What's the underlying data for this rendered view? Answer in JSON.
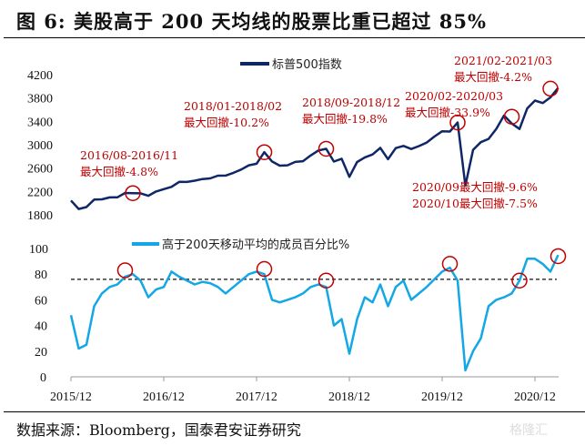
{
  "title": "图 6:  美股高于 200 天均线的股票比重已超过 85%",
  "source": "数据来源：Bloomberg，国泰君安证券研究",
  "watermark": "格隆汇",
  "chart_data": [
    {
      "type": "line",
      "name": "top",
      "legend": "标普500指数",
      "color": "#0f2766",
      "yticks": [
        1800,
        2200,
        2600,
        3000,
        3400,
        3800,
        4200
      ],
      "ylim": [
        1800,
        4200
      ],
      "x": [
        "2015-12",
        "2016-01",
        "2016-02",
        "2016-03",
        "2016-04",
        "2016-05",
        "2016-06",
        "2016-07",
        "2016-08",
        "2016-09",
        "2016-10",
        "2016-11",
        "2016-12",
        "2017-01",
        "2017-02",
        "2017-03",
        "2017-04",
        "2017-05",
        "2017-06",
        "2017-07",
        "2017-08",
        "2017-09",
        "2017-10",
        "2017-11",
        "2017-12",
        "2018-01",
        "2018-02",
        "2018-03",
        "2018-04",
        "2018-05",
        "2018-06",
        "2018-07",
        "2018-08",
        "2018-09",
        "2018-10",
        "2018-11",
        "2018-12",
        "2019-01",
        "2019-02",
        "2019-03",
        "2019-04",
        "2019-05",
        "2019-06",
        "2019-07",
        "2019-08",
        "2019-09",
        "2019-10",
        "2019-11",
        "2019-12",
        "2020-01",
        "2020-02",
        "2020-03",
        "2020-04",
        "2020-05",
        "2020-06",
        "2020-07",
        "2020-08",
        "2020-09",
        "2020-10",
        "2020-11",
        "2020-12",
        "2021-01",
        "2021-02",
        "2021-03"
      ],
      "values": [
        2044,
        1900,
        1932,
        2060,
        2065,
        2097,
        2099,
        2174,
        2171,
        2168,
        2126,
        2199,
        2239,
        2279,
        2364,
        2363,
        2384,
        2412,
        2423,
        2470,
        2472,
        2519,
        2575,
        2648,
        2674,
        2872,
        2714,
        2641,
        2648,
        2705,
        2718,
        2816,
        2902,
        2930,
        2712,
        2760,
        2450,
        2704,
        2784,
        2834,
        2946,
        2752,
        2942,
        2980,
        2926,
        2977,
        3038,
        3141,
        3231,
        3226,
        3380,
        2300,
        2912,
        3044,
        3100,
        3271,
        3500,
        3363,
        3270,
        3622,
        3756,
        3714,
        3811,
        3973
      ],
      "annotations": [
        {
          "date": "2016-08",
          "value": 2171,
          "text": [
            "2016/08-2016/11",
            "最大回撤-4.8%"
          ]
        },
        {
          "date": "2018-01",
          "value": 2872,
          "text": [
            "2018/01-2018/02",
            "最大回撤-10.2%"
          ]
        },
        {
          "date": "2018-09",
          "value": 2930,
          "text": [
            "2018/09-2018/12",
            "最大回撤-19.8%"
          ]
        },
        {
          "date": "2020-02",
          "value": 3380,
          "text": [
            "2020/02-2020/03",
            "最大回撤-33.9%"
          ]
        },
        {
          "date": "2020-09",
          "value": 3480,
          "text": [
            "2020/09最大回撤-9.6%",
            "2020/10最大回撤-7.5%"
          ]
        },
        {
          "date": "2021-02",
          "value": 3960,
          "text": [
            "2021/02-2021/03",
            "最大回撤-4.2%"
          ]
        }
      ]
    },
    {
      "type": "line",
      "name": "bottom",
      "legend": "高于200天移动平均的成员百分比%",
      "color": "#13a7e6",
      "yticks": [
        0,
        20,
        40,
        60,
        80,
        100
      ],
      "ylim": [
        0,
        100
      ],
      "reference_line": 76,
      "xticks": [
        "2015/12",
        "2016/12",
        "2017/12",
        "2018/12",
        "2019/12",
        "2020/12"
      ],
      "values": [
        48,
        22,
        25,
        55,
        65,
        70,
        72,
        78,
        80,
        75,
        62,
        68,
        70,
        82,
        78,
        75,
        72,
        74,
        73,
        70,
        65,
        70,
        75,
        80,
        82,
        80,
        60,
        58,
        60,
        62,
        65,
        70,
        72,
        70,
        40,
        45,
        18,
        45,
        62,
        58,
        72,
        55,
        70,
        75,
        60,
        65,
        70,
        76,
        82,
        85,
        75,
        5,
        20,
        30,
        55,
        60,
        62,
        65,
        75,
        92,
        92,
        88,
        82,
        95
      ],
      "circles": [
        {
          "date": "2016-07",
          "value": 83
        },
        {
          "date": "2018-01",
          "value": 84
        },
        {
          "date": "2018-09",
          "value": 75
        },
        {
          "date": "2020-01",
          "value": 88
        },
        {
          "date": "2020-10",
          "value": 75
        },
        {
          "date": "2021-03",
          "value": 94
        }
      ]
    }
  ]
}
